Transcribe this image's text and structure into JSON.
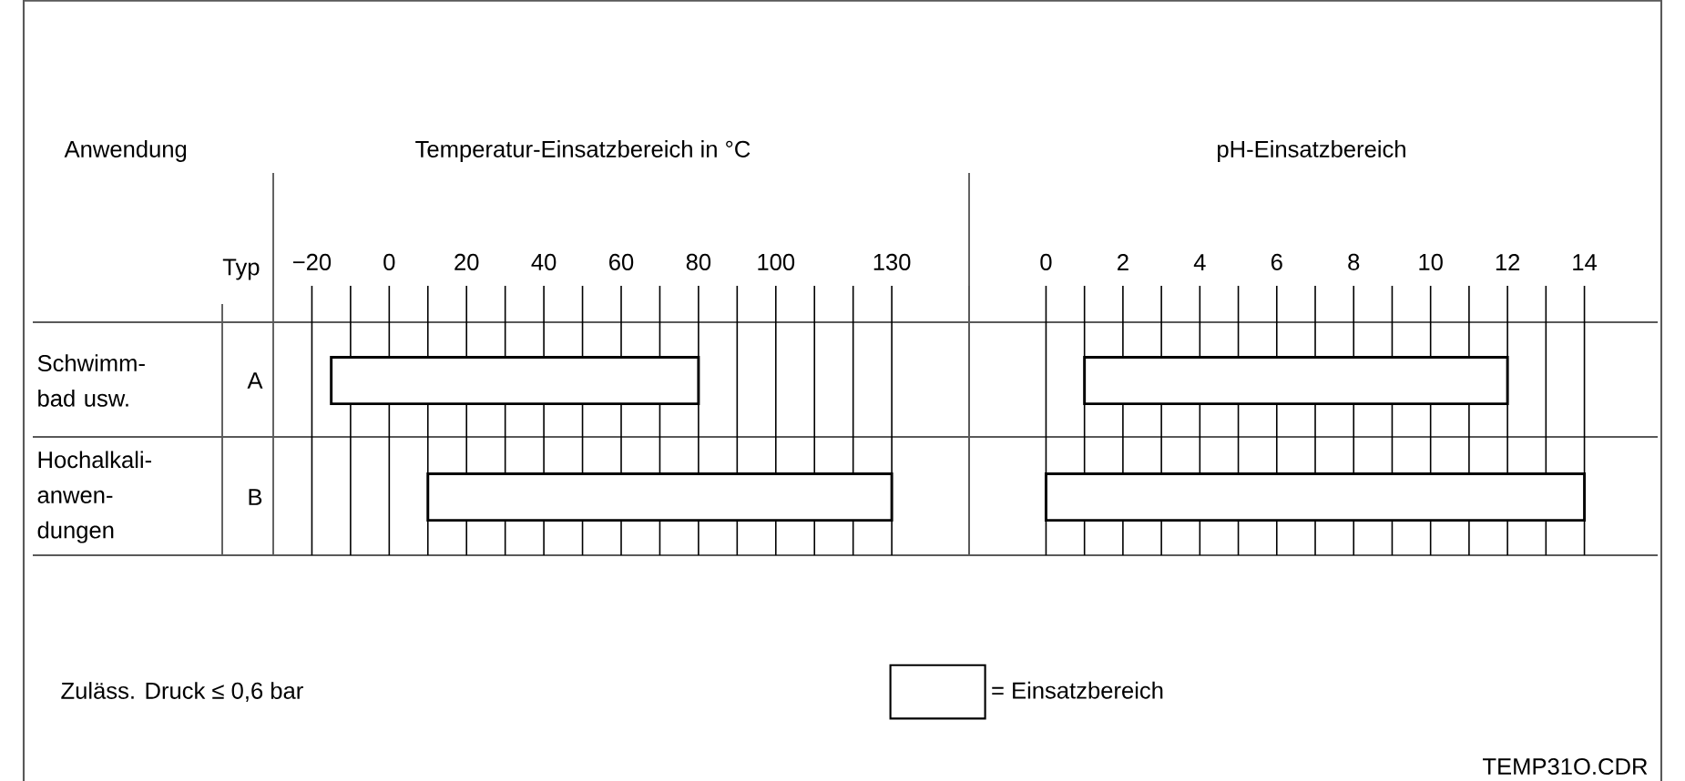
{
  "chart_data": [
    {
      "type": "bar",
      "orientation": "horizontal",
      "title": "Temperatur-Einsatzbereich in °C",
      "ylabel": "Typ",
      "categories": [
        "A",
        "B"
      ],
      "y2_categories": [
        "Schwimm-bad usw.",
        "Hochalkali-anwen-dungen"
      ],
      "series": [
        {
          "color": "#ffffff",
          "values": [
            95,
            120
          ],
          "base": [
            -15,
            10
          ]
        }
      ],
      "xlim": [
        -30,
        150
      ],
      "xticks": [
        {
          "value": -20,
          "label": "−20"
        },
        {
          "value": -10,
          "label": null
        },
        0,
        {
          "value": 10,
          "label": null
        },
        20,
        {
          "value": 30,
          "label": null
        },
        40,
        {
          "value": 50,
          "label": null
        },
        60,
        {
          "value": 70,
          "label": null
        },
        80,
        {
          "value": 90,
          "label": null
        },
        100,
        {
          "value": 110,
          "label": null
        },
        {
          "value": 120,
          "label": null
        },
        130
      ],
      "grid": "x",
      "annotations": [
        "Anwendung",
        "Zuläss. Druck ≤ 0,6 bar"
      ]
    },
    {
      "type": "bar",
      "orientation": "horizontal",
      "title": "pH-Einsatzbereich",
      "categories": [
        null,
        null
      ],
      "series": [
        {
          "name": "= Einsatzbereich",
          "color": "#ffffff",
          "values": [
            11,
            14
          ],
          "base": [
            1,
            0
          ]
        }
      ],
      "xlim": [
        -2,
        16
      ],
      "xticks": [
        0,
        {
          "value": 1,
          "label": null
        },
        2,
        {
          "value": 3,
          "label": null
        },
        4,
        {
          "value": 5,
          "label": null
        },
        6,
        {
          "value": 7,
          "label": null
        },
        8,
        {
          "value": 9,
          "label": null
        },
        10,
        {
          "value": 11,
          "label": null
        },
        12,
        {
          "value": 13,
          "label": null
        },
        14
      ],
      "grid": "x",
      "legend": "bottom",
      "annotations": [
        "TEMP31O.CDR"
      ]
    }
  ]
}
